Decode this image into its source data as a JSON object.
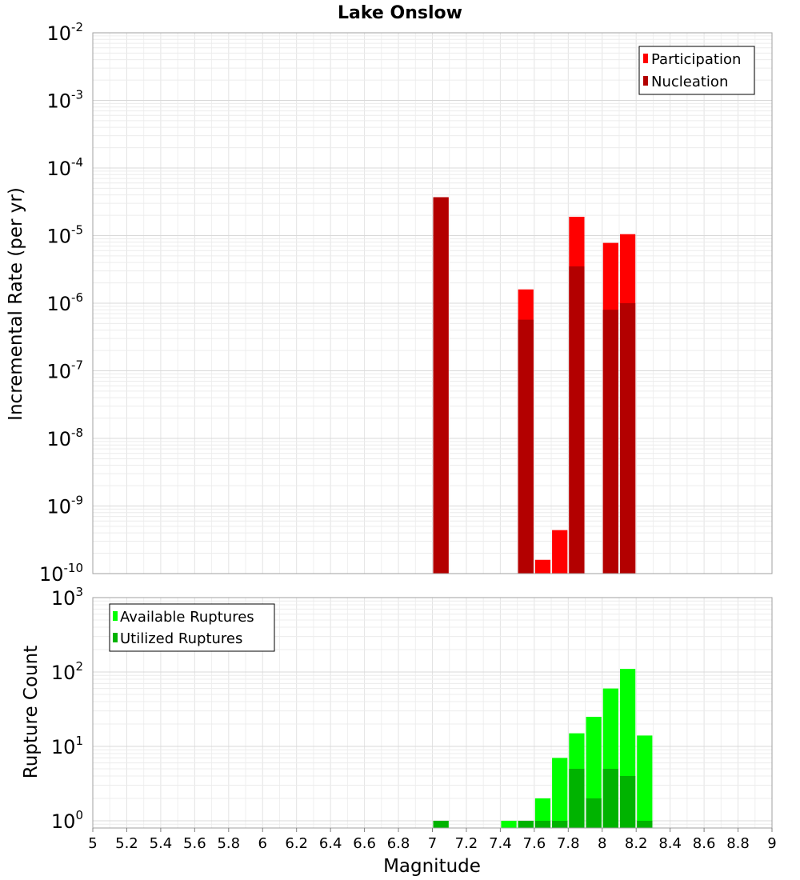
{
  "chart_data": [
    {
      "type": "bar",
      "title": "Lake Onslow",
      "ylabel": "Incremental Rate (per yr)",
      "yscale": "log",
      "ylim": [
        1e-10,
        0.01
      ],
      "xlim": [
        5,
        9
      ],
      "grid": true,
      "legend_position": "top-right",
      "bar_width": 0.1,
      "y_tick_exponents": [
        -10,
        -9,
        -8,
        -7,
        -6,
        -5,
        -4,
        -3,
        -2
      ],
      "series": [
        {
          "name": "Participation",
          "color": "#ff0000",
          "x": [
            7.05,
            7.55,
            7.65,
            7.75,
            7.85,
            8.05,
            8.15
          ],
          "values": [
            3.7e-05,
            1.6e-06,
            1.6e-10,
            4.4e-10,
            1.9e-05,
            7.8e-06,
            1.05e-05
          ]
        },
        {
          "name": "Nucleation",
          "color": "#b30000",
          "x": [
            7.05,
            7.55,
            7.85,
            8.05,
            8.15
          ],
          "values": [
            3.7e-05,
            5.7e-07,
            3.5e-06,
            8e-07,
            1e-06
          ]
        }
      ]
    },
    {
      "type": "bar",
      "xlabel": "Magnitude",
      "ylabel": "Rupture Count",
      "yscale": "log",
      "ylim": [
        0.8,
        1000
      ],
      "xlim": [
        5,
        9
      ],
      "grid": true,
      "legend_position": "top-left",
      "bar_width": 0.1,
      "y_tick_exponents": [
        0,
        1,
        2,
        3
      ],
      "x_ticks": [
        "5",
        "5.2",
        "5.4",
        "5.6",
        "5.8",
        "6",
        "6.2",
        "6.4",
        "6.6",
        "6.8",
        "7",
        "7.2",
        "7.4",
        "7.6",
        "7.8",
        "8",
        "8.2",
        "8.4",
        "8.6",
        "8.8",
        "9"
      ],
      "series": [
        {
          "name": "Available Ruptures",
          "color": "#00ff00",
          "x": [
            7.05,
            7.45,
            7.55,
            7.65,
            7.75,
            7.85,
            7.95,
            8.05,
            8.15,
            8.25
          ],
          "values": [
            1,
            1,
            1,
            2,
            7,
            15,
            25,
            60,
            110,
            14
          ]
        },
        {
          "name": "Utilized Ruptures",
          "color": "#00b300",
          "x": [
            7.05,
            7.55,
            7.65,
            7.75,
            7.85,
            7.95,
            8.05,
            8.15,
            8.25
          ],
          "values": [
            1,
            1,
            1,
            1,
            5,
            2,
            5,
            4,
            1
          ]
        }
      ]
    }
  ]
}
